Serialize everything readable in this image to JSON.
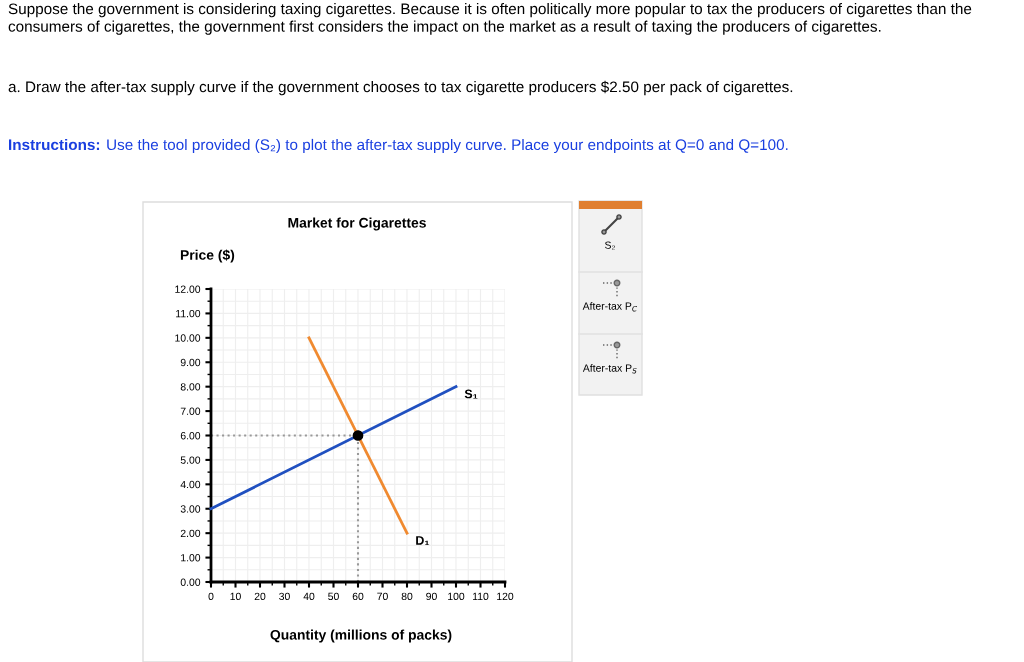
{
  "chart_data": {
    "type": "line",
    "title": "Market for Cigarettes",
    "xlabel": "Quantity (millions of packs)",
    "ylabel": "Price ($)",
    "annotations": [
      "Suppose the government is considering taxing cigarettes. Because it is often politically more popular to tax the producers of cigarettes than the consumers of cigarettes, the government first considers the impact on the market as a result of taxing the producers of cigarettes.",
      "a. Draw the after-tax supply curve if the government chooses to tax cigarette producers $2.50 per pack of cigarettes.",
      "Instructions:",
      "Use the tool provided (S₂) to plot the after-tax supply curve. Place your endpoints at Q=0 and Q=100.",
      "S₂",
      "After-tax P$_{C}$",
      "After-tax P$_{S}$"
    ],
    "xlim": [
      0,
      120
    ],
    "xticks": [
      0,
      10,
      20,
      30,
      40,
      50,
      60,
      70,
      80,
      90,
      100,
      110,
      120
    ],
    "ylim": [
      0,
      12
    ],
    "yticks": [
      {
        "value": 0,
        "label": "0.00"
      },
      {
        "value": 1,
        "label": "1.00"
      },
      {
        "value": 2,
        "label": "2.00"
      },
      {
        "value": 3,
        "label": "3.00"
      },
      {
        "value": 4,
        "label": "4.00"
      },
      {
        "value": 5,
        "label": "5.00"
      },
      {
        "value": 6,
        "label": "6.00"
      },
      {
        "value": 7,
        "label": "7.00"
      },
      {
        "value": 8,
        "label": "8.00"
      },
      {
        "value": 9,
        "label": "9.00"
      },
      {
        "value": 10,
        "label": "10.00"
      },
      {
        "value": 11,
        "label": "11.00"
      },
      {
        "value": 12,
        "label": "12.00"
      }
    ],
    "grid": true,
    "marker": "none",
    "series": [
      {
        "name": "S₁",
        "color": "#2050c0",
        "x": [
          0,
          100
        ],
        "values": [
          3,
          8
        ]
      },
      {
        "name": "D₁",
        "color": "#f08a30",
        "x": [
          40,
          80
        ],
        "values": [
          10,
          2
        ]
      },
      {
        "color": "#999999",
        "x": [
          0,
          60
        ],
        "values": [
          6,
          6
        ],
        "line_style": "dotted"
      },
      {
        "color": "#999999",
        "x": [
          60,
          60
        ],
        "values": [
          0,
          6
        ],
        "line_style": "dotted"
      },
      {
        "type": "scatter",
        "color": "#000000",
        "x": [
          60
        ],
        "values": [
          6
        ],
        "marker": "circle"
      }
    ]
  }
}
